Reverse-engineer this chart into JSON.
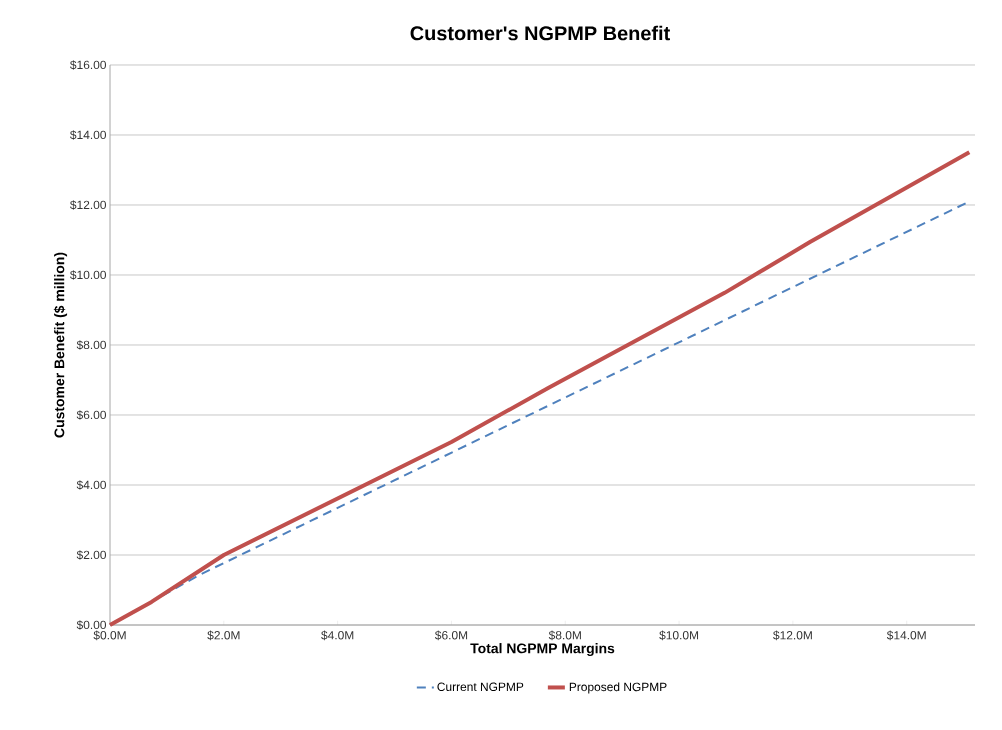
{
  "chart_data": {
    "type": "line",
    "title": "Customer's NGPMP Benefit",
    "xlabel": "Total NGPMP Margins",
    "ylabel": "Customer Benefit ($ million)",
    "xlim": [
      0,
      15.2
    ],
    "ylim": [
      0,
      16
    ],
    "xticks": [
      {
        "value": 0,
        "label": "$0.0M"
      },
      {
        "value": 2,
        "label": "$2.0M"
      },
      {
        "value": 4,
        "label": "$4.0M"
      },
      {
        "value": 6,
        "label": "$6.0M"
      },
      {
        "value": 8,
        "label": "$8.0M"
      },
      {
        "value": 10,
        "label": "$10.0M"
      },
      {
        "value": 12,
        "label": "$12.0M"
      },
      {
        "value": 14,
        "label": "$14.0M"
      }
    ],
    "yticks": [
      {
        "value": 0,
        "label": "$0.00"
      },
      {
        "value": 2,
        "label": "$2.00"
      },
      {
        "value": 4,
        "label": "$4.00"
      },
      {
        "value": 6,
        "label": "$6.00"
      },
      {
        "value": 8,
        "label": "$8.00"
      },
      {
        "value": 10,
        "label": "$10.00"
      },
      {
        "value": 12,
        "label": "$12.00"
      },
      {
        "value": 14,
        "label": "$14.00"
      },
      {
        "value": 16,
        "label": "$16.00"
      }
    ],
    "grid": "y",
    "legend": "bottom",
    "marker": "none",
    "series": [
      {
        "name": "Current NGPMP",
        "color": "#4f81bd",
        "line_style": "dashed",
        "x": [
          0,
          1.57,
          15.1
        ],
        "values": [
          0,
          1.43,
          12.1
        ]
      },
      {
        "name": "Proposed NGPMP",
        "color": "#c0504d",
        "line_style": "solid",
        "x": [
          0,
          0.73,
          2,
          6,
          7.7,
          10.8,
          12.3,
          15.1
        ],
        "values": [
          0,
          0.66,
          2.0,
          5.23,
          6.77,
          9.49,
          10.94,
          13.51
        ]
      }
    ]
  }
}
